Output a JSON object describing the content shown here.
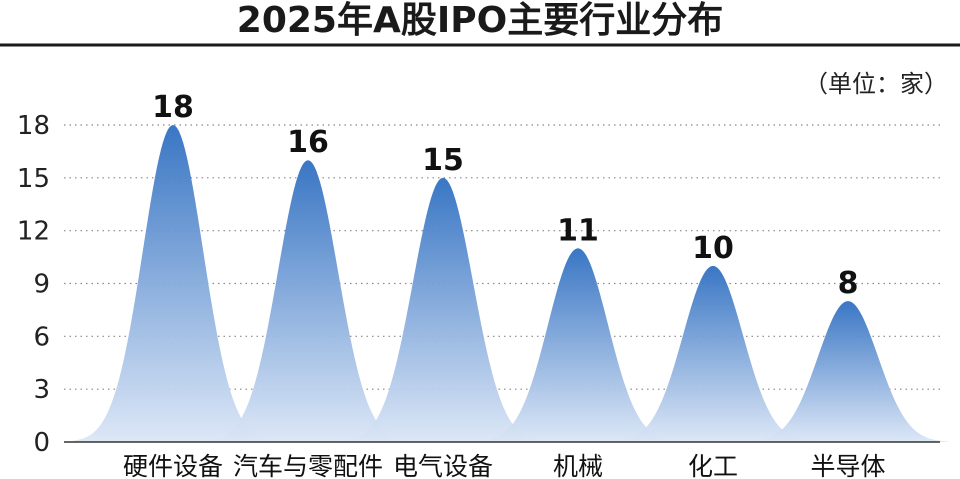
{
  "chart_data": {
    "type": "area",
    "title": "2025年A股IPO主要行业分布",
    "unit_label": "（单位：家）",
    "categories": [
      "硬件设备",
      "汽车与零配件",
      "电气设备",
      "机械",
      "化工",
      "半导体"
    ],
    "values": [
      18,
      16,
      15,
      11,
      10,
      8
    ],
    "ylim": [
      0,
      18
    ],
    "yticks": [
      0,
      3,
      6,
      9,
      12,
      15,
      18
    ],
    "grid": true,
    "colors": {
      "peak_top": "#2f6fc1",
      "peak_bottom": "#dbe6f6"
    }
  }
}
